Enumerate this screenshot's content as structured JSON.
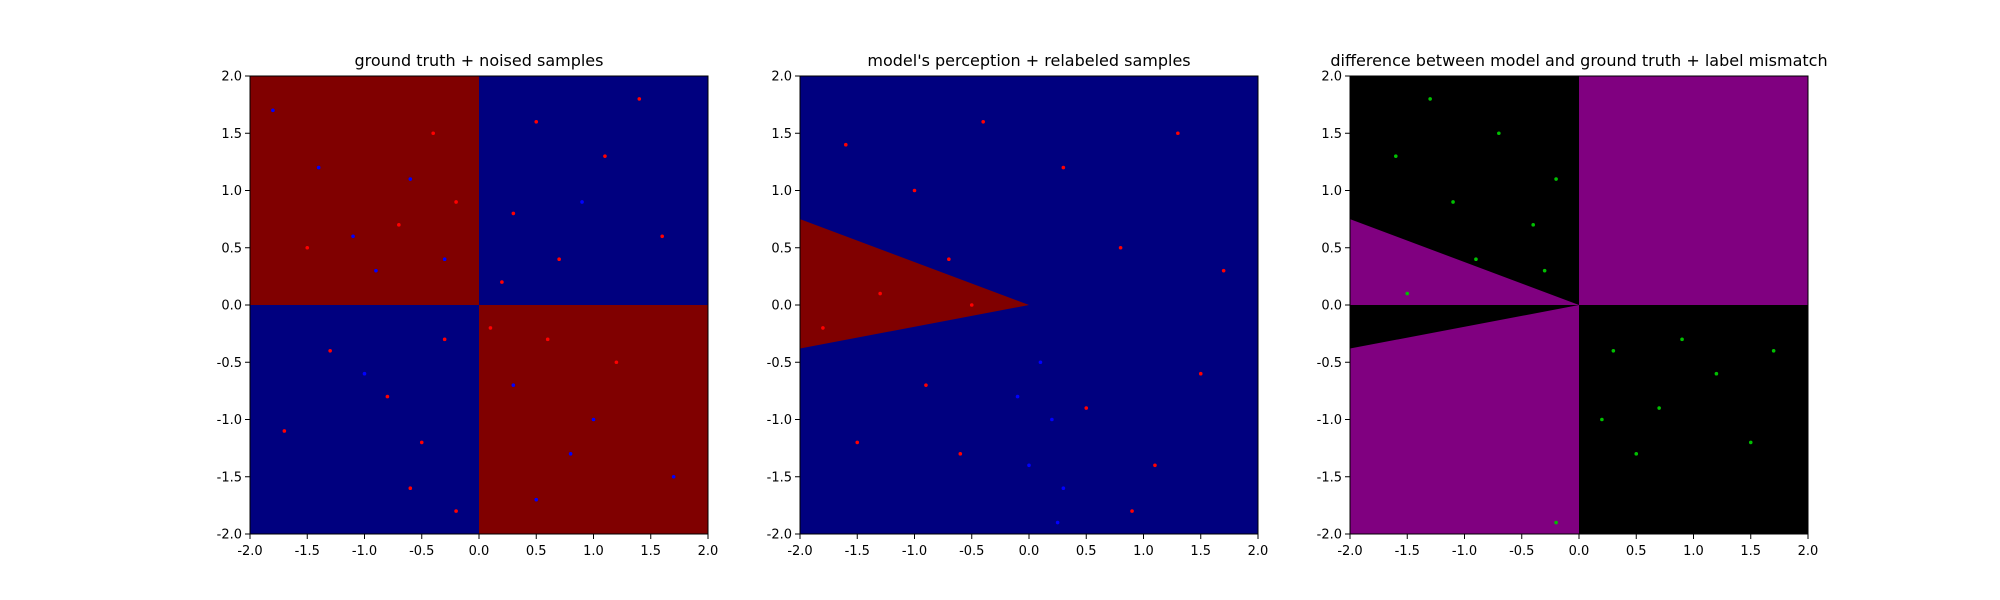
{
  "figure": {
    "titles": [
      "ground truth + noised samples",
      "model's perception + relabeled samples",
      "difference between model and ground truth + label mismatch"
    ]
  },
  "colors": {
    "dark_red": "#800000",
    "navy": "#00007f",
    "purple": "#800080",
    "black": "#000000",
    "point_red": "#ff0000",
    "point_blue": "#0000ff",
    "point_green": "#00c000"
  },
  "chart_data": [
    {
      "type": "scatter",
      "title": "ground truth + noised samples",
      "xlim": [
        -2.0,
        2.0
      ],
      "ylim": [
        -2.0,
        2.0
      ],
      "xticks": [
        "-2.0",
        "-1.5",
        "-1.0",
        "-0.5",
        "0.0",
        "0.5",
        "1.0",
        "1.5",
        "2.0"
      ],
      "yticks": [
        "-2.0",
        "-1.5",
        "-1.0",
        "-0.5",
        "0.0",
        "0.5",
        "1.0",
        "1.5",
        "2.0"
      ],
      "background": "XOR quadrants: x<0,y>0 and x>0,y<0 dark red; x>0,y>0 and x<0,y<0 navy",
      "points": [
        {
          "x": -1.8,
          "y": 1.7,
          "c": "blue"
        },
        {
          "x": -1.4,
          "y": 1.2,
          "c": "blue"
        },
        {
          "x": -1.1,
          "y": 0.6,
          "c": "blue"
        },
        {
          "x": -0.6,
          "y": 1.1,
          "c": "blue"
        },
        {
          "x": -0.3,
          "y": 0.4,
          "c": "blue"
        },
        {
          "x": -0.9,
          "y": 0.3,
          "c": "blue"
        },
        {
          "x": -1.5,
          "y": 0.5,
          "c": "red"
        },
        {
          "x": -0.4,
          "y": 1.5,
          "c": "red"
        },
        {
          "x": -0.7,
          "y": 0.7,
          "c": "red"
        },
        {
          "x": -0.2,
          "y": 0.9,
          "c": "red"
        },
        {
          "x": 0.3,
          "y": 0.8,
          "c": "red"
        },
        {
          "x": 0.7,
          "y": 0.4,
          "c": "red"
        },
        {
          "x": 1.1,
          "y": 1.3,
          "c": "red"
        },
        {
          "x": 0.5,
          "y": 1.6,
          "c": "red"
        },
        {
          "x": 1.6,
          "y": 0.6,
          "c": "red"
        },
        {
          "x": 0.2,
          "y": 0.2,
          "c": "red"
        },
        {
          "x": 0.9,
          "y": 0.9,
          "c": "blue"
        },
        {
          "x": 1.4,
          "y": 1.8,
          "c": "red"
        },
        {
          "x": -0.8,
          "y": -0.8,
          "c": "red"
        },
        {
          "x": -0.5,
          "y": -1.2,
          "c": "red"
        },
        {
          "x": -1.3,
          "y": -0.4,
          "c": "red"
        },
        {
          "x": -0.3,
          "y": -0.3,
          "c": "red"
        },
        {
          "x": -0.6,
          "y": -1.6,
          "c": "red"
        },
        {
          "x": -1.7,
          "y": -1.1,
          "c": "red"
        },
        {
          "x": -1.0,
          "y": -0.6,
          "c": "blue"
        },
        {
          "x": -0.2,
          "y": -1.8,
          "c": "red"
        },
        {
          "x": 0.3,
          "y": -0.7,
          "c": "blue"
        },
        {
          "x": 0.8,
          "y": -1.3,
          "c": "blue"
        },
        {
          "x": 1.2,
          "y": -0.5,
          "c": "red"
        },
        {
          "x": 0.5,
          "y": -1.7,
          "c": "blue"
        },
        {
          "x": 1.7,
          "y": -1.5,
          "c": "blue"
        },
        {
          "x": 0.1,
          "y": -0.2,
          "c": "red"
        },
        {
          "x": 1.0,
          "y": -1.0,
          "c": "blue"
        },
        {
          "x": 0.6,
          "y": -0.3,
          "c": "red"
        }
      ]
    },
    {
      "type": "scatter",
      "title": "model's perception + relabeled samples",
      "xlim": [
        -2.0,
        2.0
      ],
      "ylim": [
        -2.0,
        2.0
      ],
      "xticks": [
        "-2.0",
        "-1.5",
        "-1.0",
        "-0.5",
        "0.0",
        "0.5",
        "1.0",
        "1.5",
        "2.0"
      ],
      "yticks": [
        "-2.0",
        "-1.5",
        "-1.0",
        "-0.5",
        "0.0",
        "0.5",
        "1.0",
        "1.5",
        "2.0"
      ],
      "background": "navy everywhere except a dark red wedge from the origin to the left edge between y=0.75 and y=-0.38 at x=-2",
      "wedge": {
        "apex": [
          0.0,
          0.0
        ],
        "left_edge_top": [
          -2.0,
          0.75
        ],
        "left_edge_bottom": [
          -2.0,
          -0.38
        ]
      },
      "points": [
        {
          "x": -1.6,
          "y": 1.4,
          "c": "red"
        },
        {
          "x": -1.0,
          "y": 1.0,
          "c": "red"
        },
        {
          "x": -0.4,
          "y": 1.6,
          "c": "red"
        },
        {
          "x": 0.3,
          "y": 1.2,
          "c": "red"
        },
        {
          "x": 0.8,
          "y": 0.5,
          "c": "red"
        },
        {
          "x": 1.3,
          "y": 1.5,
          "c": "red"
        },
        {
          "x": 1.7,
          "y": 0.3,
          "c": "red"
        },
        {
          "x": -0.7,
          "y": 0.4,
          "c": "red"
        },
        {
          "x": -1.3,
          "y": 0.1,
          "c": "red"
        },
        {
          "x": -0.5,
          "y": 0.0,
          "c": "red"
        },
        {
          "x": -1.8,
          "y": -0.2,
          "c": "red"
        },
        {
          "x": -0.9,
          "y": -0.7,
          "c": "red"
        },
        {
          "x": -0.6,
          "y": -1.3,
          "c": "red"
        },
        {
          "x": -1.5,
          "y": -1.2,
          "c": "red"
        },
        {
          "x": 0.5,
          "y": -0.9,
          "c": "red"
        },
        {
          "x": 1.1,
          "y": -1.4,
          "c": "red"
        },
        {
          "x": 1.5,
          "y": -0.6,
          "c": "red"
        },
        {
          "x": 0.9,
          "y": -1.8,
          "c": "red"
        },
        {
          "x": 0.1,
          "y": -0.5,
          "c": "blue"
        },
        {
          "x": 0.2,
          "y": -1.0,
          "c": "blue"
        },
        {
          "x": 0.0,
          "y": -1.4,
          "c": "blue"
        },
        {
          "x": 0.3,
          "y": -1.6,
          "c": "blue"
        },
        {
          "x": -0.1,
          "y": -0.8,
          "c": "blue"
        },
        {
          "x": 0.25,
          "y": -1.9,
          "c": "blue"
        }
      ]
    },
    {
      "type": "scatter",
      "title": "difference between model and ground truth + label mismatch",
      "xlim": [
        -2.0,
        2.0
      ],
      "ylim": [
        -2.0,
        2.0
      ],
      "xticks": [
        "-2.0",
        "-1.5",
        "-1.0",
        "-0.5",
        "0.0",
        "0.5",
        "1.0",
        "1.5",
        "2.0"
      ],
      "yticks": [
        "-2.0",
        "-1.5",
        "-1.0",
        "-0.5",
        "0.0",
        "0.5",
        "1.0",
        "1.5",
        "2.0"
      ],
      "background": "purple where model and ground truth disagree, black where they agree",
      "points": [
        {
          "x": -1.6,
          "y": 1.3,
          "c": "green"
        },
        {
          "x": -1.1,
          "y": 0.9,
          "c": "green"
        },
        {
          "x": -0.7,
          "y": 1.5,
          "c": "green"
        },
        {
          "x": -0.4,
          "y": 0.7,
          "c": "green"
        },
        {
          "x": -0.2,
          "y": 1.1,
          "c": "green"
        },
        {
          "x": -0.9,
          "y": 0.4,
          "c": "green"
        },
        {
          "x": -0.3,
          "y": 0.3,
          "c": "green"
        },
        {
          "x": -1.3,
          "y": 1.8,
          "c": "green"
        },
        {
          "x": 0.3,
          "y": -0.4,
          "c": "green"
        },
        {
          "x": 0.7,
          "y": -0.9,
          "c": "green"
        },
        {
          "x": 1.2,
          "y": -0.6,
          "c": "green"
        },
        {
          "x": 0.5,
          "y": -1.3,
          "c": "green"
        },
        {
          "x": 1.5,
          "y": -1.2,
          "c": "green"
        },
        {
          "x": 0.9,
          "y": -0.3,
          "c": "green"
        },
        {
          "x": 0.2,
          "y": -1.0,
          "c": "green"
        },
        {
          "x": 1.7,
          "y": -0.4,
          "c": "green"
        },
        {
          "x": -1.5,
          "y": 0.1,
          "c": "green"
        },
        {
          "x": -0.2,
          "y": -1.9,
          "c": "green"
        }
      ]
    }
  ]
}
